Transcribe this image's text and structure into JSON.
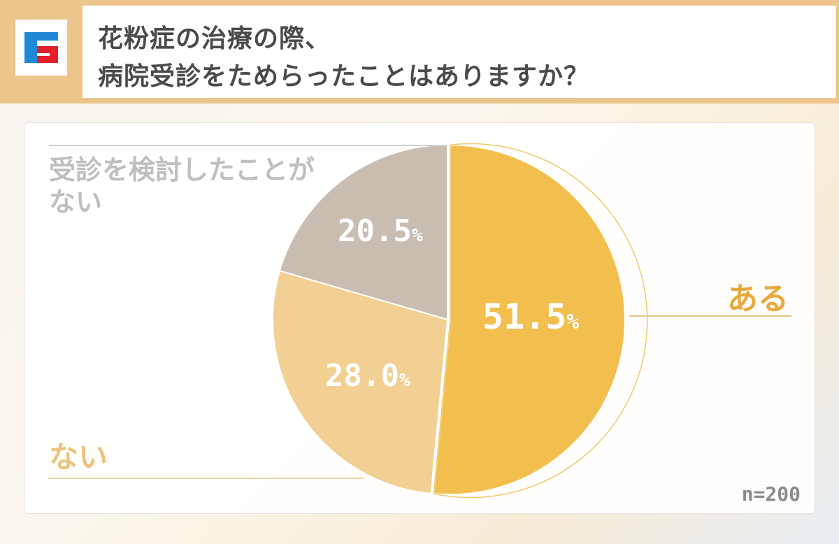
{
  "header": {
    "title_line1": "花粉症の治療の際、",
    "title_line2": "病院受診をためらったことはありますか？",
    "logo_icon": "brand-logo-icon"
  },
  "colors": {
    "header_band": "#ebc58c",
    "slice_yes": "#f2bf4f",
    "slice_no": "#f2cf92",
    "slice_not_considered": "#c9bdb2",
    "label_yes": "#e8a93a",
    "label_no": "#edc37c",
    "label_not_considered": "#bfbfbf",
    "sample_text": "#8a8a8a"
  },
  "chart_data": {
    "type": "pie",
    "categories": [
      "ある",
      "ない",
      "受診を検討したことがない"
    ],
    "values": [
      51.5,
      28.0,
      20.5
    ],
    "value_labels": [
      "51.5",
      "28.0",
      "20.5"
    ],
    "unit": "%",
    "label_lines": {
      "yes": "ある",
      "no": "ない",
      "not_considered_1": "受診を検討したことが",
      "not_considered_2": "ない"
    },
    "sample_size": "n=200"
  }
}
